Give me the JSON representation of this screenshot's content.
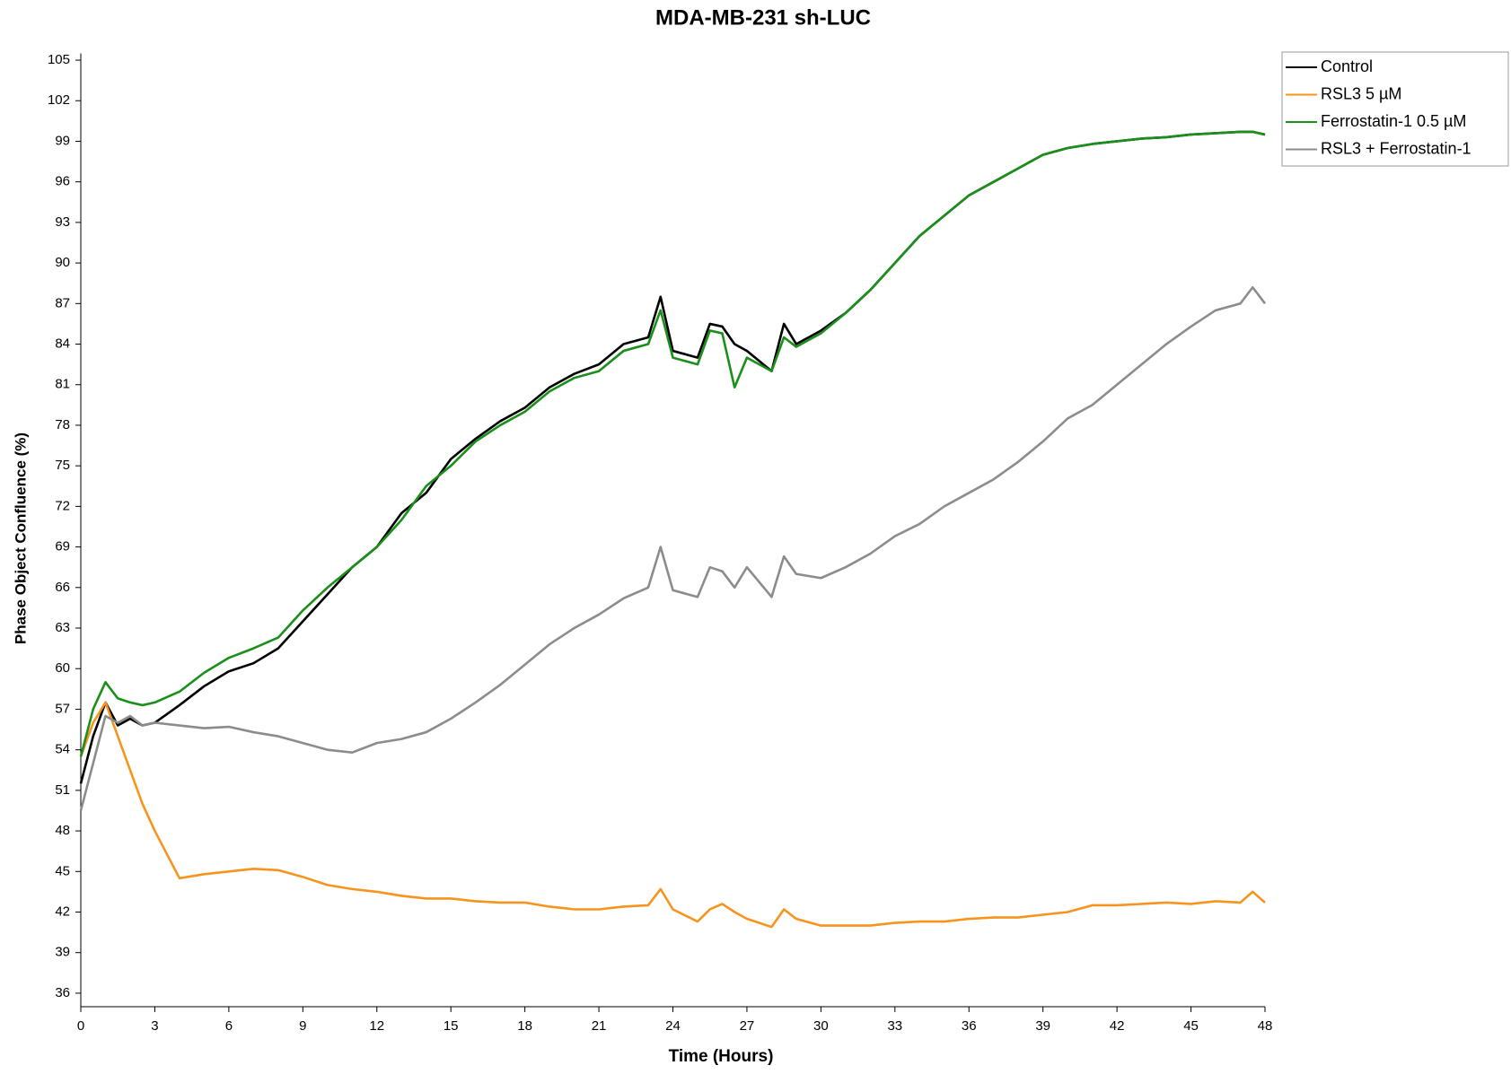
{
  "chart_data": {
    "type": "line",
    "title": "MDA-MB-231 sh-LUC",
    "x_label": "Time (Hours)",
    "y_label": "Phase Object Confluence (%)",
    "xlim": [
      0,
      48
    ],
    "ylim": [
      35,
      105.5
    ],
    "xticks": [
      0,
      3,
      6,
      9,
      12,
      15,
      18,
      21,
      24,
      27,
      30,
      33,
      36,
      39,
      42,
      45,
      48
    ],
    "yticks": [
      36,
      39,
      42,
      45,
      48,
      51,
      54,
      57,
      60,
      63,
      66,
      69,
      72,
      75,
      78,
      81,
      84,
      87,
      90,
      93,
      96,
      99,
      102,
      105
    ],
    "grid": false,
    "legend": "outside-right",
    "x": [
      0,
      0.5,
      1,
      1.5,
      2,
      2.5,
      3,
      4,
      5,
      6,
      7,
      8,
      9,
      10,
      11,
      12,
      13,
      14,
      15,
      16,
      17,
      18,
      19,
      20,
      21,
      22,
      23,
      23.5,
      24,
      25,
      25.5,
      26,
      26.5,
      27,
      28,
      28.5,
      29,
      30,
      31,
      32,
      33,
      34,
      35,
      36,
      37,
      38,
      39,
      40,
      41,
      42,
      43,
      44,
      45,
      46,
      47,
      47.5,
      48
    ],
    "series": [
      {
        "name": "Control",
        "color": "#000000",
        "values": [
          51.5,
          55,
          57.5,
          55.8,
          56.3,
          55.8,
          56,
          57.3,
          58.7,
          59.8,
          60.4,
          61.5,
          63.5,
          65.5,
          67.5,
          69,
          71.5,
          73,
          75.5,
          77,
          78.3,
          79.3,
          80.8,
          81.8,
          82.5,
          84,
          84.5,
          87.5,
          83.5,
          83,
          85.5,
          85.3,
          84,
          83.5,
          82,
          85.5,
          84,
          85,
          86.3,
          88,
          90,
          92,
          93.5,
          95,
          96,
          97,
          98,
          98.5,
          98.8,
          99,
          99.2,
          99.3,
          99.5,
          99.6,
          99.7,
          99.7,
          99.5
        ]
      },
      {
        "name": "RSL3 5 µM",
        "color": "#f7941d",
        "values": [
          53.5,
          56,
          57.5,
          55,
          52.5,
          50,
          48,
          44.5,
          44.8,
          45,
          45.2,
          45.1,
          44.6,
          44,
          43.7,
          43.5,
          43.2,
          43,
          43,
          42.8,
          42.7,
          42.7,
          42.4,
          42.2,
          42.2,
          42.4,
          42.5,
          43.7,
          42.2,
          41.3,
          42.2,
          42.6,
          42,
          41.5,
          40.9,
          42.2,
          41.5,
          41,
          41,
          41,
          41.2,
          41.3,
          41.3,
          41.5,
          41.6,
          41.6,
          41.8,
          42,
          42.5,
          42.5,
          42.6,
          42.7,
          42.6,
          42.8,
          42.7,
          43.5,
          42.7
        ]
      },
      {
        "name": "Ferrostatin-1 0.5 µM",
        "color": "#1a8f1a",
        "values": [
          53.5,
          57,
          59,
          57.8,
          57.5,
          57.3,
          57.5,
          58.3,
          59.7,
          60.8,
          61.5,
          62.3,
          64.3,
          66,
          67.5,
          69,
          71,
          73.5,
          75,
          76.8,
          78,
          79,
          80.5,
          81.5,
          82,
          83.5,
          84,
          86.5,
          83,
          82.5,
          85,
          84.8,
          80.8,
          83,
          82,
          84.5,
          83.8,
          84.8,
          86.3,
          88,
          90,
          92,
          93.5,
          95,
          96,
          97,
          98,
          98.5,
          98.8,
          99,
          99.2,
          99.3,
          99.5,
          99.6,
          99.7,
          99.7,
          99.5
        ]
      },
      {
        "name": "RSL3 + Ferrostatin-1",
        "color": "#8c8c8c",
        "values": [
          49.5,
          53,
          56.5,
          56,
          56.5,
          55.8,
          56,
          55.8,
          55.6,
          55.7,
          55.3,
          55,
          54.5,
          54,
          53.8,
          54.5,
          54.8,
          55.3,
          56.3,
          57.5,
          58.8,
          60.3,
          61.8,
          63,
          64,
          65.2,
          66,
          69,
          65.8,
          65.3,
          67.5,
          67.2,
          66,
          67.5,
          65.3,
          68.3,
          67,
          66.7,
          67.5,
          68.5,
          69.8,
          70.7,
          72,
          73,
          74,
          75.3,
          76.8,
          78.5,
          79.5,
          81,
          82.5,
          84,
          85.3,
          86.5,
          87,
          88.2,
          87
        ]
      }
    ]
  }
}
